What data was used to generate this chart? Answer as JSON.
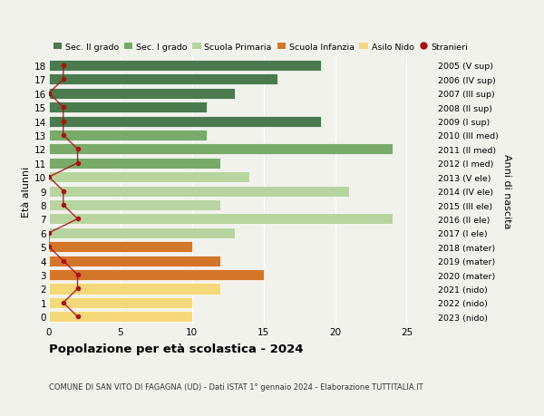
{
  "ages": [
    18,
    17,
    16,
    15,
    14,
    13,
    12,
    11,
    10,
    9,
    8,
    7,
    6,
    5,
    4,
    3,
    2,
    1,
    0
  ],
  "bar_values": [
    19,
    16,
    13,
    11,
    19,
    11,
    24,
    12,
    14,
    21,
    12,
    24,
    13,
    10,
    12,
    15,
    12,
    10,
    10
  ],
  "right_labels": [
    "2005 (V sup)",
    "2006 (IV sup)",
    "2007 (III sup)",
    "2008 (II sup)",
    "2009 (I sup)",
    "2010 (III med)",
    "2011 (II med)",
    "2012 (I med)",
    "2013 (V ele)",
    "2014 (IV ele)",
    "2015 (III ele)",
    "2016 (II ele)",
    "2017 (I ele)",
    "2018 (mater)",
    "2019 (mater)",
    "2020 (mater)",
    "2021 (nido)",
    "2022 (nido)",
    "2023 (nido)"
  ],
  "bar_colors": [
    "#4a7a4e",
    "#4a7a4e",
    "#4a7a4e",
    "#4a7a4e",
    "#4a7a4e",
    "#7aaa6a",
    "#7aaa6a",
    "#7aaa6a",
    "#b8d4a0",
    "#b8d4a0",
    "#b8d4a0",
    "#b8d4a0",
    "#b8d4a0",
    "#d4762a",
    "#d4762a",
    "#d4762a",
    "#f5d87a",
    "#f5d87a",
    "#f5d87a"
  ],
  "stranieri_x": [
    1,
    1,
    0,
    1,
    1,
    1,
    2,
    2,
    0,
    1,
    1,
    2,
    0,
    0,
    1,
    2,
    2,
    1,
    2
  ],
  "title": "Popolazione per età scolastica - 2024",
  "subtitle": "COMUNE DI SAN VITO DI FAGAGNA (UD) - Dati ISTAT 1° gennaio 2024 - Elaborazione TUTTITALIA.IT",
  "ylabel": "Età alunni",
  "ylabel_right": "Anni di nascita",
  "legend_labels": [
    "Sec. II grado",
    "Sec. I grado",
    "Scuola Primaria",
    "Scuola Infanzia",
    "Asilo Nido",
    "Stranieri"
  ],
  "legend_colors": [
    "#4a7a4e",
    "#7aaa6a",
    "#b8d4a0",
    "#d4762a",
    "#f5d87a",
    "#aa1111"
  ],
  "xlim": [
    0,
    27
  ],
  "background_color": "#f2f2ed",
  "bar_height": 0.78,
  "grid_color": "#ffffff",
  "stranieri_color": "#aa1111"
}
